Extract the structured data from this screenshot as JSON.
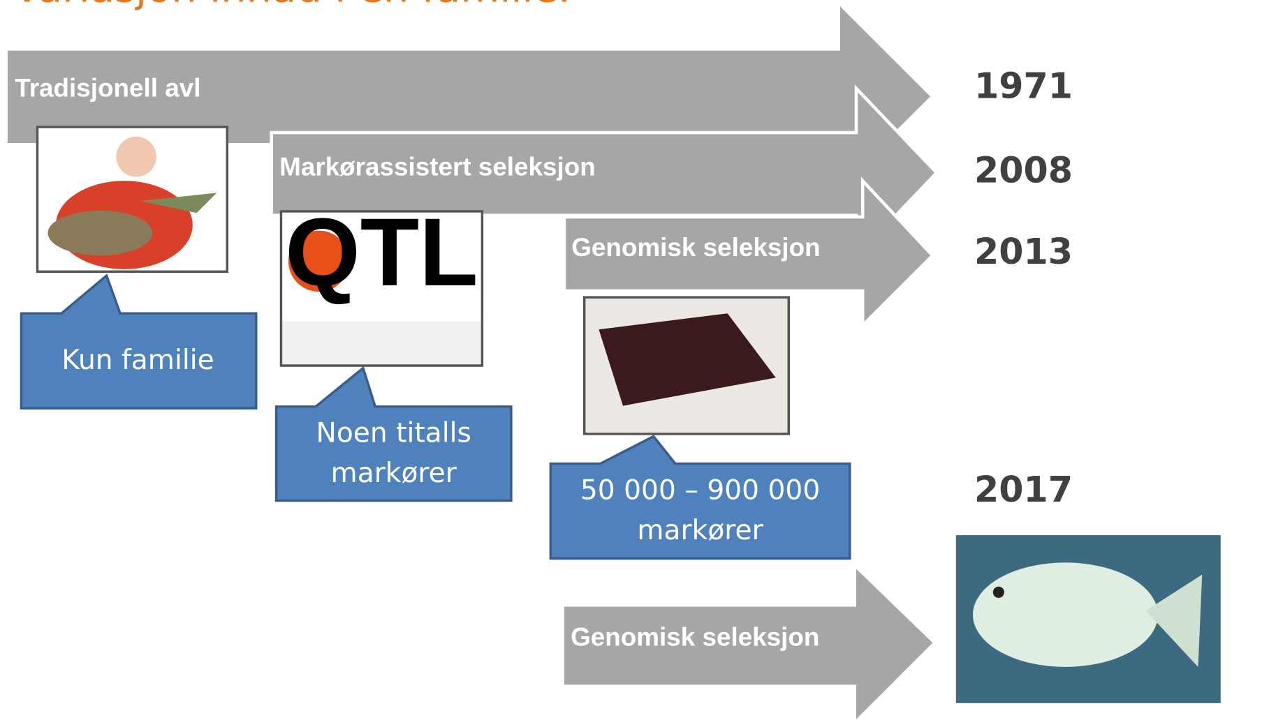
{
  "title": "Variasjon innad i en familie.",
  "arrows": [
    {
      "label": "Tradisjonell avl",
      "year": "1971"
    },
    {
      "label": "Markørassistert seleksjon",
      "year": "2008"
    },
    {
      "label": "Genomisk seleksjon",
      "year": "2013"
    },
    {
      "label": "Genomisk seleksjon",
      "year": "2017"
    }
  ],
  "callouts": [
    {
      "lines": [
        "Kun familie"
      ]
    },
    {
      "lines": [
        "Noen titalls",
        "markører"
      ]
    },
    {
      "lines": [
        "50 000 – 900 000",
        "markører"
      ]
    }
  ],
  "qtl_image_text": "QTL"
}
